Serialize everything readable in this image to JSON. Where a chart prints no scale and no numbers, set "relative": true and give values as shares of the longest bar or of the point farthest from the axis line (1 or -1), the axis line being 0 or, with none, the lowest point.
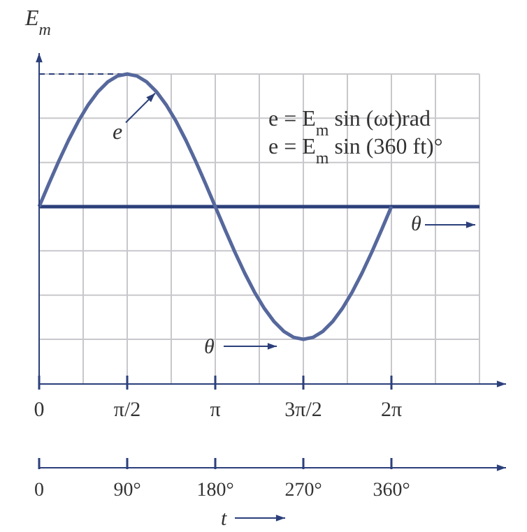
{
  "chart_data": {
    "type": "line",
    "relative": true,
    "ylabel": "E$_{m}$",
    "xlabel": "t",
    "x2label": "θ",
    "x": [
      0,
      10,
      20,
      30,
      40,
      50,
      60,
      70,
      80,
      90,
      100,
      110,
      120,
      130,
      140,
      150,
      160,
      170,
      180,
      190,
      200,
      210,
      220,
      230,
      240,
      250,
      260,
      270,
      280,
      290,
      300,
      310,
      320,
      330,
      340,
      350,
      360
    ],
    "series": [
      {
        "color": "#56689c",
        "values": [
          0,
          0.174,
          0.342,
          0.5,
          0.643,
          0.766,
          0.866,
          0.94,
          0.985,
          1,
          0.985,
          0.94,
          0.866,
          0.766,
          0.643,
          0.5,
          0.342,
          0.174,
          0,
          -0.174,
          -0.342,
          -0.5,
          -0.643,
          -0.766,
          -0.866,
          -0.94,
          -0.985,
          -1,
          -0.985,
          -0.94,
          -0.866,
          -0.766,
          -0.643,
          -0.5,
          -0.342,
          -0.174,
          0
        ]
      }
    ],
    "xlim": [
      0,
      450
    ],
    "xticks": [
      0,
      {
        "value": 90,
        "label": "90°"
      },
      {
        "value": 180,
        "label": "180°"
      },
      {
        "value": 270,
        "label": "270°"
      },
      {
        "value": 360,
        "label": "360°"
      }
    ],
    "x2lim": [
      0,
      7.854
    ],
    "x2ticks": [
      0,
      {
        "value": 1.5708,
        "label": "π/2"
      },
      {
        "value": 3.1416,
        "label": "π"
      },
      {
        "value": 4.7124,
        "label": "3π/2"
      },
      {
        "value": 6.2832,
        "label": "2π"
      }
    ],
    "grid": true,
    "marker": "none",
    "line_style": "solid",
    "ref_lines": [
      {
        "axis": "y",
        "value": 1,
        "line_style": "dashed",
        "color": "#2b3f7a"
      },
      {
        "axis": "y",
        "value": 0,
        "line_style": "solid",
        "color": "#2b3f7a"
      }
    ],
    "annotations": [
      "e = E$_{m}$ sin (ωt)rad",
      "e = E$_{m}$ sin (360 ft)°",
      {
        "text": "e",
        "x": 120,
        "y": 0.866
      },
      "θ"
    ]
  }
}
